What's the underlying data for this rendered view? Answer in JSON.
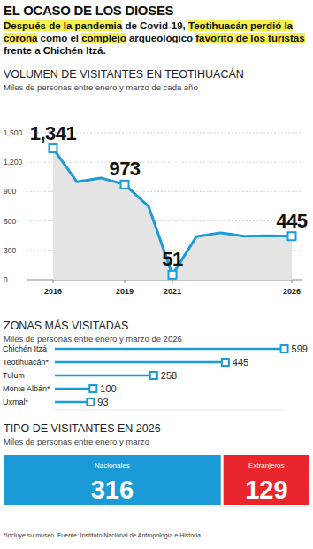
{
  "header": {
    "title": "EL OCASO DE LOS DIOSES",
    "subtitle_parts": [
      "Después de la pandemia",
      " de Covid-19, ",
      "Teotihuacán perdió la corona",
      " como el ",
      "complejo",
      " arqueológico ",
      "favorito de los turistas",
      " frente a Chichén Itzá."
    ]
  },
  "chart_data": [
    {
      "type": "area",
      "title": "VOLUMEN DE VISITANTES EN TEOTIHUACÁN",
      "subtitle": "Miles de personas entre enero y marzo de cada año",
      "x": [
        2016,
        2017,
        2018,
        2019,
        2020,
        2021,
        2022,
        2023,
        2024,
        2025,
        2026
      ],
      "values": [
        1341,
        1000,
        1040,
        973,
        750,
        51,
        440,
        480,
        445,
        450,
        445
      ],
      "value_labels": [
        "1,341",
        null,
        null,
        "973",
        null,
        "51",
        null,
        null,
        null,
        null,
        "445"
      ],
      "color": "#1a9ad6",
      "marker": "square",
      "data_labels": true,
      "grid": true,
      "xlim": [
        2016,
        2026
      ],
      "xticks": [
        2016,
        2019,
        2021,
        2026
      ],
      "ylim": [
        0,
        1500
      ],
      "yticks": [
        0,
        300,
        600,
        900,
        {
          "value": 1200,
          "label": "1,200"
        },
        {
          "value": 1500,
          "label": "1,500"
        }
      ]
    },
    {
      "type": "bar",
      "orientation": "horizontal",
      "title": "ZONAS MÁS VISITADAS",
      "subtitle": "Miles de personas entre enero y marzo de 2026",
      "categories": [
        "Chichén Itzá",
        "Teotihuacán*",
        "Tulum",
        "Monte Albán*",
        "Uxmal*"
      ],
      "values": [
        599,
        445,
        258,
        100,
        93
      ],
      "color": "#1a9ad6",
      "marker": "square",
      "data_labels": true,
      "tick_labels": "y",
      "xlim": [
        0,
        600
      ]
    },
    {
      "type": "bar",
      "orientation": "horizontal",
      "stacked": true,
      "title": "TIPO DE VISITANTES EN 2026",
      "subtitle": "Miles de personas entre enero y marzo",
      "categories": [
        null
      ],
      "series": [
        {
          "name": "Nacionales",
          "color": "#1a9ad6",
          "values": [
            316
          ]
        },
        {
          "name": "Extranjeros",
          "color": "#e8262b",
          "values": [
            129
          ]
        }
      ],
      "data_labels": true,
      "tick_labels": false,
      "xlim": [
        0,
        445
      ]
    }
  ],
  "footnote": "*Incluye su museo. Fuente: Instituto Nacional de Antropología e Historia."
}
